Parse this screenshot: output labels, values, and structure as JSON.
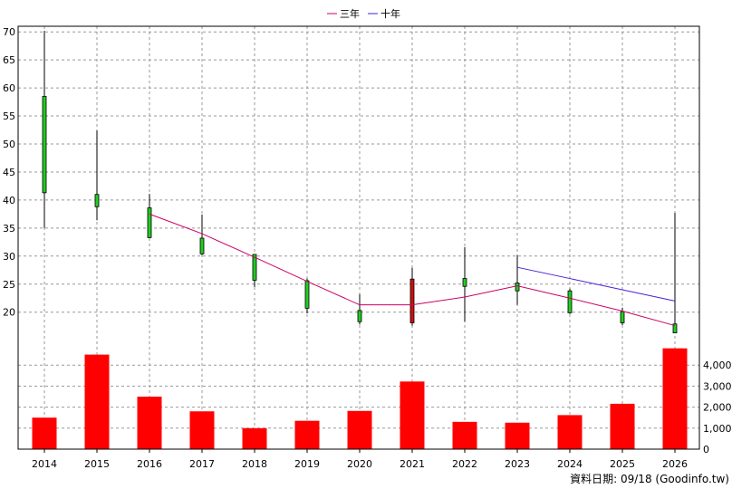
{
  "chart_data": {
    "type": "candlestick+bar",
    "legend": [
      {
        "name": "三年",
        "color": "#cc0066"
      },
      {
        "name": "十年",
        "color": "#4b1fd6"
      }
    ],
    "years": [
      "2014",
      "2015",
      "2016",
      "2017",
      "2018",
      "2019",
      "2020",
      "2021",
      "2022",
      "2023",
      "2024",
      "2025",
      "2026"
    ],
    "price_axis": {
      "min": 14.3,
      "max": 71,
      "ticks": [
        20,
        25,
        30,
        35,
        40,
        45,
        50,
        55,
        60,
        65,
        70
      ]
    },
    "volume_axis": {
      "min": 0,
      "max": 5000,
      "ticks": [
        0,
        1000,
        2000,
        3000,
        4000
      ],
      "tick_labels": [
        "0",
        "1,000",
        "2,000",
        "3,000",
        "4,000"
      ]
    },
    "candles": [
      {
        "year": "2014",
        "open": 58.5,
        "high": 70.2,
        "low": 35,
        "close": 41.3,
        "color": "green"
      },
      {
        "year": "2015",
        "open": 41,
        "high": 52.4,
        "low": 36.4,
        "close": 38.8,
        "color": "green"
      },
      {
        "year": "2016",
        "open": 38.6,
        "high": 41.1,
        "low": 33.2,
        "close": 33.3,
        "color": "green"
      },
      {
        "year": "2017",
        "open": 33.2,
        "high": 37.4,
        "low": 30.2,
        "close": 30.4,
        "color": "green"
      },
      {
        "year": "2018",
        "open": 30.3,
        "high": 30.3,
        "low": 24.5,
        "close": 25.7,
        "color": "green"
      },
      {
        "year": "2019",
        "open": 25.6,
        "high": 26,
        "low": 19.8,
        "close": 20.7,
        "color": "green"
      },
      {
        "year": "2020",
        "open": 20.3,
        "high": 23.2,
        "low": 17.8,
        "close": 18.3,
        "color": "green"
      },
      {
        "year": "2021",
        "open": 18.1,
        "high": 27.9,
        "low": 17.6,
        "close": 25.9,
        "color": "red"
      },
      {
        "year": "2022",
        "open": 26,
        "high": 31.6,
        "low": 18.3,
        "close": 24.6,
        "color": "green"
      },
      {
        "year": "2023",
        "open": 25.2,
        "high": 30.2,
        "low": 21.3,
        "close": 23.8,
        "color": "green"
      },
      {
        "year": "2024",
        "open": 23.8,
        "high": 24.2,
        "low": 19.7,
        "close": 19.9,
        "color": "green"
      },
      {
        "year": "2025",
        "open": 20.1,
        "high": 20.8,
        "low": 17.7,
        "close": 18.1,
        "color": "green"
      },
      {
        "year": "2026",
        "open": 17.9,
        "high": 37.7,
        "low": 16.3,
        "close": 16.3,
        "color": "green"
      }
    ],
    "series": [
      {
        "name": "三年",
        "x": [
          "2016",
          "2017",
          "2018",
          "2019",
          "2020",
          "2021",
          "2022",
          "2023",
          "2024",
          "2025",
          "2026"
        ],
        "values": [
          37.5,
          34,
          29.8,
          25.5,
          21.3,
          21.3,
          22.7,
          24.7,
          22.5,
          20.2,
          17.6
        ]
      },
      {
        "name": "十年",
        "x": [
          "2023",
          "2024",
          "2025",
          "2026"
        ],
        "values": [
          28,
          26,
          24,
          22
        ]
      }
    ],
    "volume": [
      1500,
      4500,
      2500,
      1800,
      1000,
      1350,
      1820,
      3220,
      1300,
      1260,
      1620,
      2160,
      4800
    ],
    "footer": "資料日期: 09/18  (Goodinfo.tw)"
  }
}
